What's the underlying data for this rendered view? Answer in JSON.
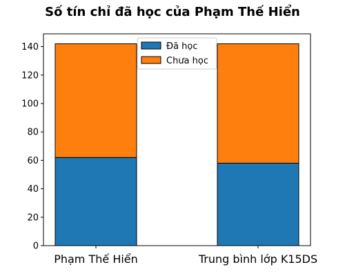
{
  "chart_data": {
    "type": "bar",
    "stacked": true,
    "title": "Số tín chỉ đã học của Phạm Thế Hiển",
    "xlabel": "",
    "ylabel": "",
    "categories": [
      "Phạm Thế Hiển",
      "Trung bình lớp K15DS"
    ],
    "series": [
      {
        "name": "Đã học",
        "values": [
          62,
          58
        ],
        "color": "#1f77b4"
      },
      {
        "name": "Chưa học",
        "values": [
          80,
          84
        ],
        "color": "#ff7f0e"
      }
    ],
    "ylim": [
      0,
      149
    ],
    "yticks": [
      0,
      20,
      40,
      60,
      80,
      100,
      120,
      140
    ],
    "grid": false,
    "legend_position": "top-center"
  }
}
